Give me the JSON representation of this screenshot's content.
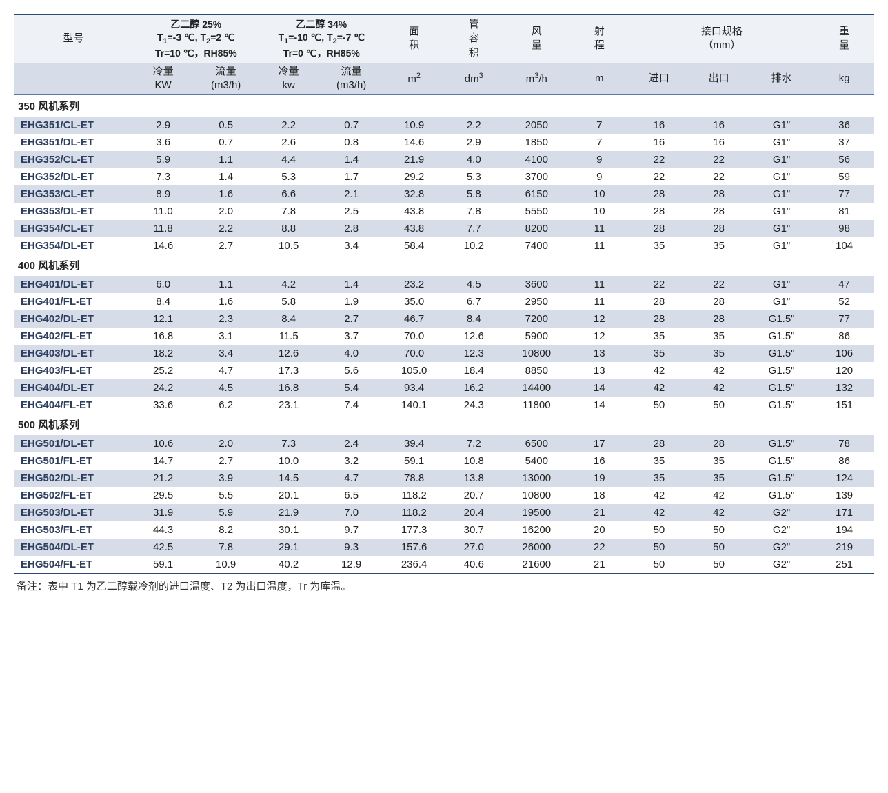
{
  "colors": {
    "header_bg": "#eef2f7",
    "stripe_bg": "#d6dde8",
    "border": "#2a4a7a",
    "model_text": "#2d3e5e",
    "text": "#222222"
  },
  "header": {
    "model": "型号",
    "glycol25": {
      "title": "乙二醇 25%",
      "line2": "T₁=-3 ℃, T₂=2 ℃",
      "line3": "Tr=10 ℃，RH85%"
    },
    "glycol34": {
      "title": "乙二醇 34%",
      "line2": "T₁=-10 ℃, T₂=-7 ℃",
      "line3": "Tr=0 ℃，RH85%"
    },
    "area": {
      "label": "面\n积",
      "unit": "m²"
    },
    "tubevol": {
      "label": "管\n容\n积",
      "unit": "dm³"
    },
    "airflow": {
      "label": "风\n量",
      "unit": "m³/h"
    },
    "throw": {
      "label": "射\n程",
      "unit": "m"
    },
    "conn": {
      "label": "接口规格\n（mm）"
    },
    "weight": {
      "label": "重\n量",
      "unit": "kg"
    },
    "sub": {
      "cool25": "冷量\nKW",
      "flow25": "流量\n(m3/h)",
      "cool34": "冷量\nkw",
      "flow34": "流量\n(m3/h)",
      "inlet": "进口",
      "outlet": "出口",
      "drain": "排水"
    }
  },
  "sections": [
    {
      "title": "350 风机系列",
      "rows": [
        [
          "EHG351/CL-ET",
          "2.9",
          "0.5",
          "2.2",
          "0.7",
          "10.9",
          "2.2",
          "2050",
          "7",
          "16",
          "16",
          "G1\"",
          "36"
        ],
        [
          "EHG351/DL-ET",
          "3.6",
          "0.7",
          "2.6",
          "0.8",
          "14.6",
          "2.9",
          "1850",
          "7",
          "16",
          "16",
          "G1\"",
          "37"
        ],
        [
          "EHG352/CL-ET",
          "5.9",
          "1.1",
          "4.4",
          "1.4",
          "21.9",
          "4.0",
          "4100",
          "9",
          "22",
          "22",
          "G1\"",
          "56"
        ],
        [
          "EHG352/DL-ET",
          "7.3",
          "1.4",
          "5.3",
          "1.7",
          "29.2",
          "5.3",
          "3700",
          "9",
          "22",
          "22",
          "G1\"",
          "59"
        ],
        [
          "EHG353/CL-ET",
          "8.9",
          "1.6",
          "6.6",
          "2.1",
          "32.8",
          "5.8",
          "6150",
          "10",
          "28",
          "28",
          "G1\"",
          "77"
        ],
        [
          "EHG353/DL-ET",
          "11.0",
          "2.0",
          "7.8",
          "2.5",
          "43.8",
          "7.8",
          "5550",
          "10",
          "28",
          "28",
          "G1\"",
          "81"
        ],
        [
          "EHG354/CL-ET",
          "11.8",
          "2.2",
          "8.8",
          "2.8",
          "43.8",
          "7.7",
          "8200",
          "11",
          "28",
          "28",
          "G1\"",
          "98"
        ],
        [
          "EHG354/DL-ET",
          "14.6",
          "2.7",
          "10.5",
          "3.4",
          "58.4",
          "10.2",
          "7400",
          "11",
          "35",
          "35",
          "G1\"",
          "104"
        ]
      ]
    },
    {
      "title": "400 风机系列",
      "rows": [
        [
          "EHG401/DL-ET",
          "6.0",
          "1.1",
          "4.2",
          "1.4",
          "23.2",
          "4.5",
          "3600",
          "11",
          "22",
          "22",
          "G1\"",
          "47"
        ],
        [
          "EHG401/FL-ET",
          "8.4",
          "1.6",
          "5.8",
          "1.9",
          "35.0",
          "6.7",
          "2950",
          "11",
          "28",
          "28",
          "G1\"",
          "52"
        ],
        [
          "EHG402/DL-ET",
          "12.1",
          "2.3",
          "8.4",
          "2.7",
          "46.7",
          "8.4",
          "7200",
          "12",
          "28",
          "28",
          "G1.5\"",
          "77"
        ],
        [
          "EHG402/FL-ET",
          "16.8",
          "3.1",
          "11.5",
          "3.7",
          "70.0",
          "12.6",
          "5900",
          "12",
          "35",
          "35",
          "G1.5\"",
          "86"
        ],
        [
          "EHG403/DL-ET",
          "18.2",
          "3.4",
          "12.6",
          "4.0",
          "70.0",
          "12.3",
          "10800",
          "13",
          "35",
          "35",
          "G1.5\"",
          "106"
        ],
        [
          "EHG403/FL-ET",
          "25.2",
          "4.7",
          "17.3",
          "5.6",
          "105.0",
          "18.4",
          "8850",
          "13",
          "42",
          "42",
          "G1.5\"",
          "120"
        ],
        [
          "EHG404/DL-ET",
          "24.2",
          "4.5",
          "16.8",
          "5.4",
          "93.4",
          "16.2",
          "14400",
          "14",
          "42",
          "42",
          "G1.5\"",
          "132"
        ],
        [
          "EHG404/FL-ET",
          "33.6",
          "6.2",
          "23.1",
          "7.4",
          "140.1",
          "24.3",
          "11800",
          "14",
          "50",
          "50",
          "G1.5\"",
          "151"
        ]
      ]
    },
    {
      "title": "500 风机系列",
      "rows": [
        [
          "EHG501/DL-ET",
          "10.6",
          "2.0",
          "7.3",
          "2.4",
          "39.4",
          "7.2",
          "6500",
          "17",
          "28",
          "28",
          "G1.5\"",
          "78"
        ],
        [
          "EHG501/FL-ET",
          "14.7",
          "2.7",
          "10.0",
          "3.2",
          "59.1",
          "10.8",
          "5400",
          "16",
          "35",
          "35",
          "G1.5\"",
          "86"
        ],
        [
          "EHG502/DL-ET",
          "21.2",
          "3.9",
          "14.5",
          "4.7",
          "78.8",
          "13.8",
          "13000",
          "19",
          "35",
          "35",
          "G1.5\"",
          "124"
        ],
        [
          "EHG502/FL-ET",
          "29.5",
          "5.5",
          "20.1",
          "6.5",
          "118.2",
          "20.7",
          "10800",
          "18",
          "42",
          "42",
          "G1.5\"",
          "139"
        ],
        [
          "EHG503/DL-ET",
          "31.9",
          "5.9",
          "21.9",
          "7.0",
          "118.2",
          "20.4",
          "19500",
          "21",
          "42",
          "42",
          "G2\"",
          "171"
        ],
        [
          "EHG503/FL-ET",
          "44.3",
          "8.2",
          "30.1",
          "9.7",
          "177.3",
          "30.7",
          "16200",
          "20",
          "50",
          "50",
          "G2\"",
          "194"
        ],
        [
          "EHG504/DL-ET",
          "42.5",
          "7.8",
          "29.1",
          "9.3",
          "157.6",
          "27.0",
          "26000",
          "22",
          "50",
          "50",
          "G2\"",
          "219"
        ],
        [
          "EHG504/FL-ET",
          "59.1",
          "10.9",
          "40.2",
          "12.9",
          "236.4",
          "40.6",
          "21600",
          "21",
          "50",
          "50",
          "G2\"",
          "251"
        ]
      ]
    }
  ],
  "footnote": "备注：表中 T1 为乙二醇载冷剂的进口温度、T2 为出口温度，Tr 为库温。"
}
